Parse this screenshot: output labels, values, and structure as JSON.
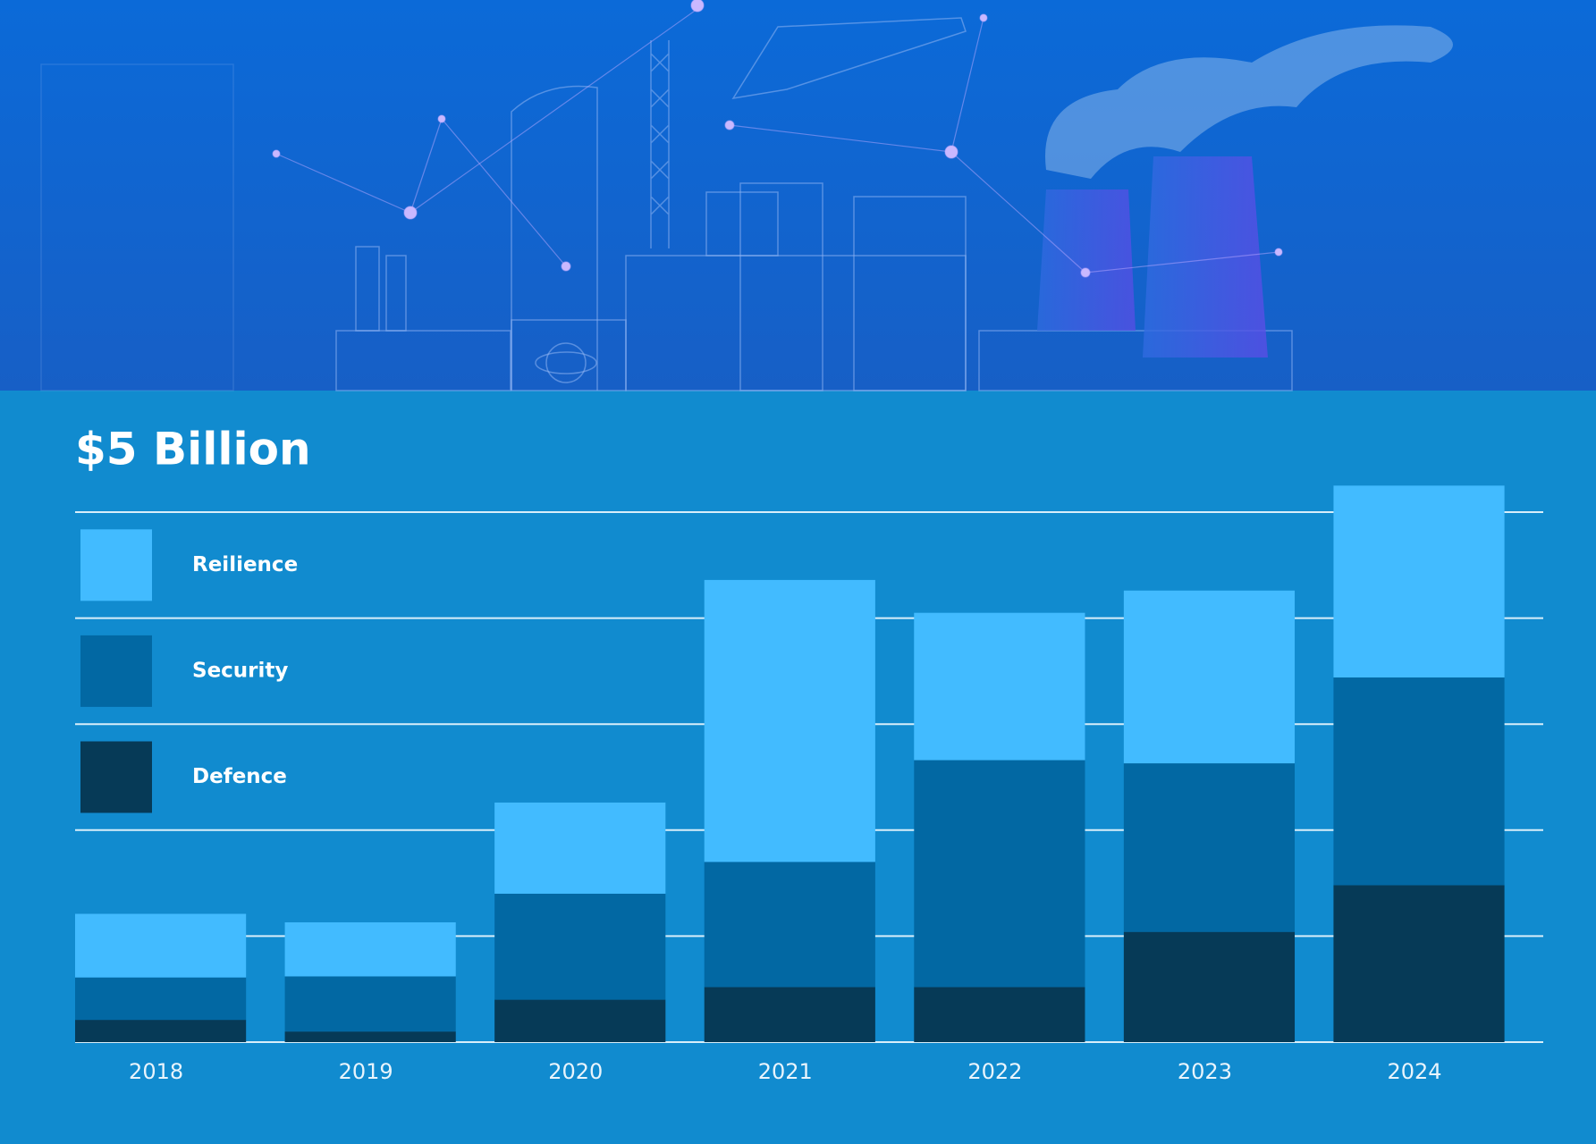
{
  "chart_data": {
    "type": "stacked-bar",
    "title": "$5 Billion",
    "categories": [
      "2018",
      "2019",
      "2020",
      "2021",
      "2022",
      "2023",
      "2024"
    ],
    "series": [
      {
        "name": "Defence",
        "color": "#063a57",
        "values": [
          0.21,
          0.1,
          0.4,
          0.52,
          0.52,
          1.04,
          1.48
        ]
      },
      {
        "name": "Security",
        "color": "#0268a3",
        "values": [
          0.4,
          0.52,
          1.0,
          1.18,
          2.14,
          1.59,
          1.96
        ]
      },
      {
        "name": "Reilience",
        "color": "#42bbff",
        "values": [
          0.6,
          0.51,
          0.86,
          2.66,
          1.39,
          1.63,
          1.81
        ]
      }
    ],
    "ylim": [
      0,
      5
    ],
    "yticks": [
      0,
      1,
      2,
      3,
      4,
      5
    ],
    "grid": true
  }
}
